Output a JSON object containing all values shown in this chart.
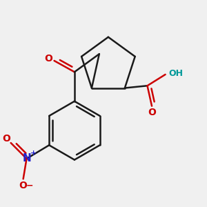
{
  "bg_color": "#f0f0f0",
  "bond_color": "#1a1a1a",
  "bond_width": 1.8,
  "dbo": 0.018,
  "O_color": "#cc0000",
  "N_color": "#2222cc",
  "OH_color": "#009999",
  "figsize": [
    3.0,
    3.0
  ],
  "dpi": 100,
  "xlim": [
    0.05,
    0.95
  ],
  "ylim": [
    0.05,
    0.95
  ]
}
